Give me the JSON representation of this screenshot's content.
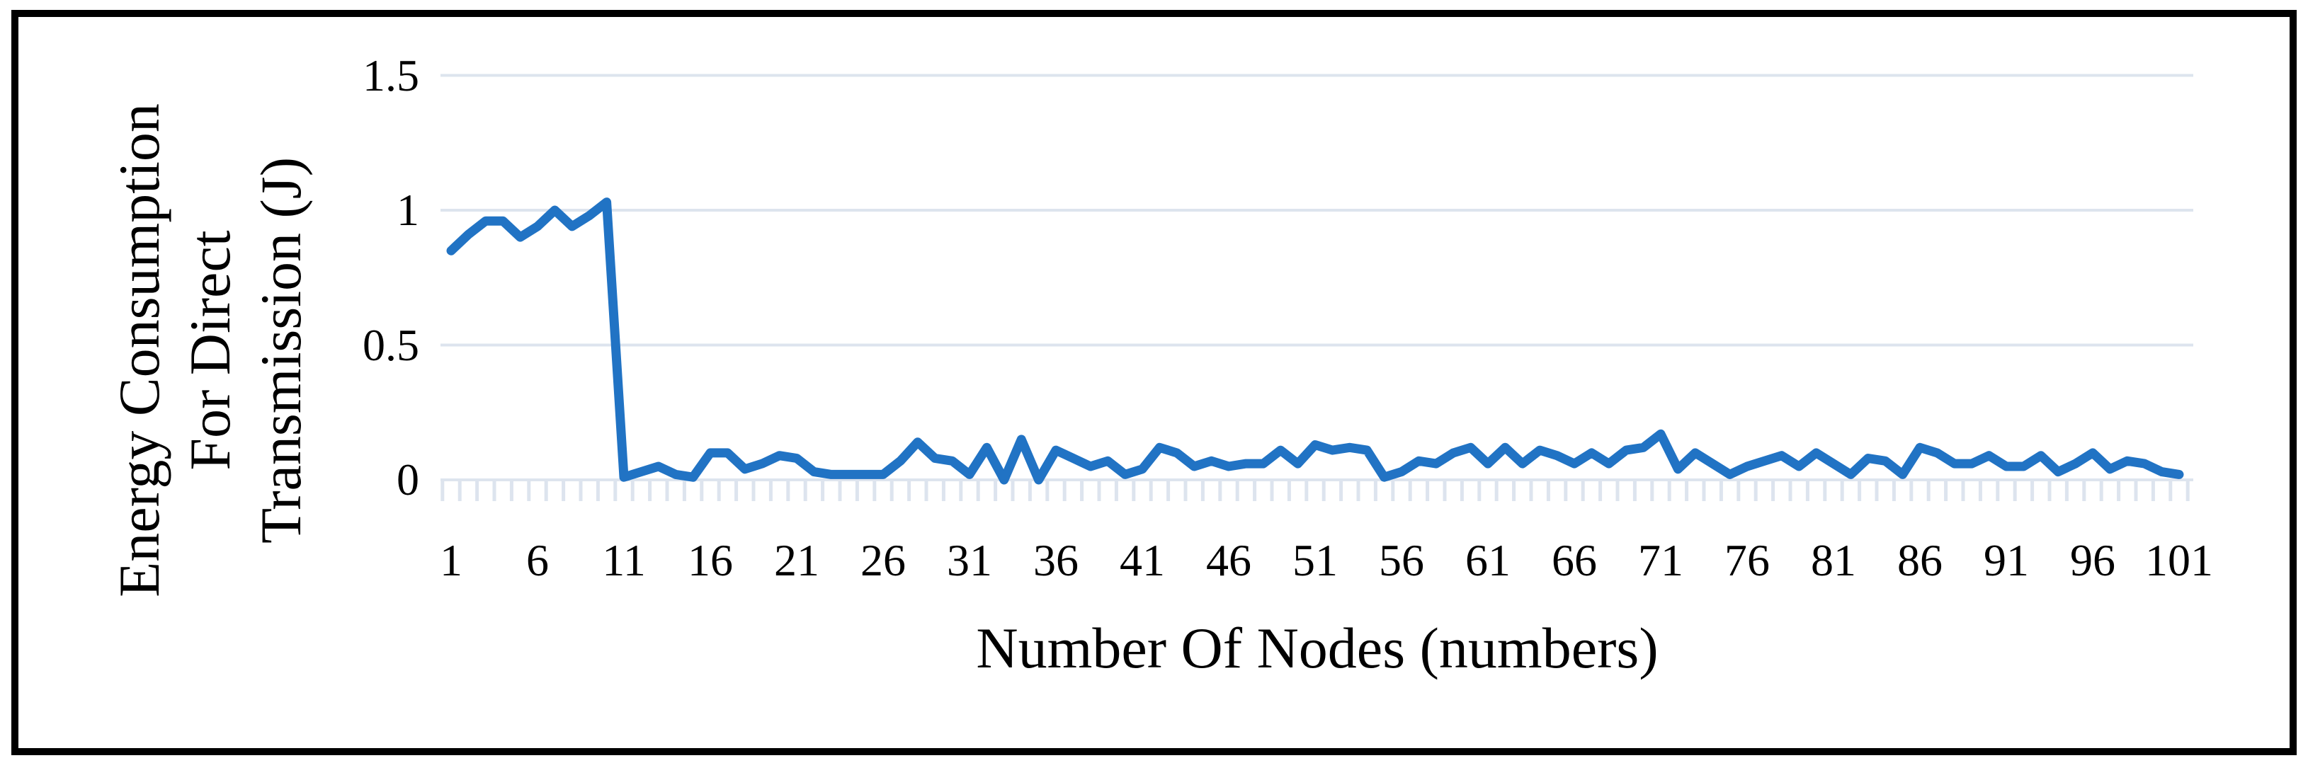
{
  "figure": {
    "background": "#ffffff",
    "border_color": "#000000"
  },
  "chart_data": {
    "type": "line",
    "title": "",
    "xlabel": "Number Of Nodes (numbers)",
    "ylabel": "Energy Consumption For Direct Transmission (J)",
    "ylabel_lines": [
      "Energy Consumption",
      "For Direct",
      "Transmission (J)"
    ],
    "series_name": "Energy Consumption For Direct Transmission",
    "line_color": "#2173c4",
    "gridline_color": "#dde4ee",
    "grid": "horizontal",
    "legend": "none",
    "xlim": [
      1,
      101
    ],
    "ylim": [
      0,
      1.5
    ],
    "x_tick_labels": [
      1,
      6,
      11,
      16,
      21,
      26,
      31,
      36,
      41,
      46,
      51,
      56,
      61,
      66,
      71,
      76,
      81,
      86,
      91,
      96,
      101
    ],
    "y_ticks": [
      0,
      0.5,
      1,
      1.5
    ],
    "y_tick_labels": [
      "0",
      "0.5",
      "1",
      "1.5"
    ],
    "x": [
      1,
      2,
      3,
      4,
      5,
      6,
      7,
      8,
      9,
      10,
      11,
      12,
      13,
      14,
      15,
      16,
      17,
      18,
      19,
      20,
      21,
      22,
      23,
      24,
      25,
      26,
      27,
      28,
      29,
      30,
      31,
      32,
      33,
      34,
      35,
      36,
      37,
      38,
      39,
      40,
      41,
      42,
      43,
      44,
      45,
      46,
      47,
      48,
      49,
      50,
      51,
      52,
      53,
      54,
      55,
      56,
      57,
      58,
      59,
      60,
      61,
      62,
      63,
      64,
      65,
      66,
      67,
      68,
      69,
      70,
      71,
      72,
      73,
      74,
      75,
      76,
      77,
      78,
      79,
      80,
      81,
      82,
      83,
      84,
      85,
      86,
      87,
      88,
      89,
      90,
      91,
      92,
      93,
      94,
      95,
      96,
      97,
      98,
      99,
      100,
      101
    ],
    "values": [
      0.85,
      0.91,
      0.96,
      0.96,
      0.9,
      0.94,
      1.0,
      0.94,
      0.98,
      1.03,
      0.01,
      0.03,
      0.05,
      0.02,
      0.01,
      0.1,
      0.1,
      0.04,
      0.06,
      0.09,
      0.08,
      0.03,
      0.02,
      0.02,
      0.02,
      0.02,
      0.07,
      0.14,
      0.08,
      0.07,
      0.02,
      0.12,
      0.0,
      0.15,
      0.0,
      0.11,
      0.08,
      0.05,
      0.07,
      0.02,
      0.04,
      0.12,
      0.1,
      0.05,
      0.07,
      0.05,
      0.06,
      0.06,
      0.11,
      0.06,
      0.13,
      0.11,
      0.12,
      0.11,
      0.01,
      0.03,
      0.07,
      0.06,
      0.1,
      0.12,
      0.06,
      0.12,
      0.06,
      0.11,
      0.09,
      0.06,
      0.1,
      0.06,
      0.11,
      0.12,
      0.17,
      0.04,
      0.1,
      0.06,
      0.02,
      0.05,
      0.07,
      0.09,
      0.05,
      0.1,
      0.06,
      0.02,
      0.08,
      0.07,
      0.02,
      0.12,
      0.1,
      0.06,
      0.06,
      0.09,
      0.05,
      0.05,
      0.09,
      0.03,
      0.06,
      0.1,
      0.04,
      0.07,
      0.06,
      0.03,
      0.02
    ]
  }
}
